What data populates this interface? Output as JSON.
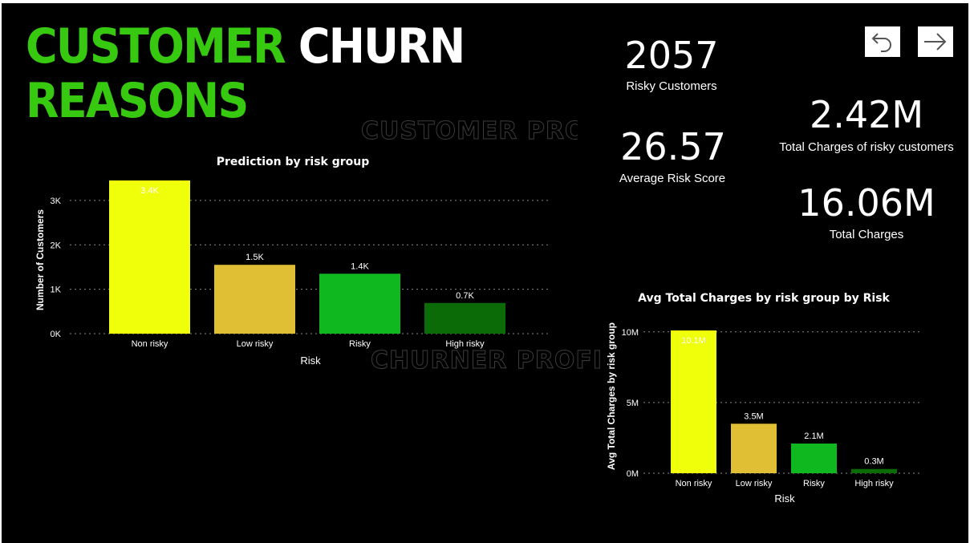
{
  "header": {
    "title_word1": "CUSTOMER",
    "title_word2": "CHURN",
    "title_line2": "REASONS"
  },
  "watermarks": {
    "customer_profile": "CUSTOMER PROFI",
    "churner_profile": "CHURNER PROFILE"
  },
  "nav": {
    "back_icon": "undo-arrow-icon",
    "forward_icon": "right-arrow-icon"
  },
  "kpis": {
    "risky_customers": {
      "value": "2057",
      "label": "Risky Customers"
    },
    "average_risk_score": {
      "value": "26.57",
      "label": "Average Risk Score"
    },
    "total_charges_risky": {
      "value": "2.42M",
      "label": "Total Charges of risky customers"
    },
    "total_charges": {
      "value": "16.06M",
      "label": "Total Charges"
    }
  },
  "colors": {
    "background": "#000000",
    "title_green": "#36c90f",
    "non_risky": "#f0ff0a",
    "low_risky": "#e0bf35",
    "risky": "#0fb81f",
    "high_risky": "#0b6b07"
  },
  "chart_data": [
    {
      "type": "bar",
      "title": "Prediction by risk group",
      "xlabel": "Risk",
      "ylabel": "Number of Customers",
      "categories": [
        "Non risky",
        "Low risky",
        "Risky",
        "High risky"
      ],
      "values": [
        3450,
        1550,
        1350,
        690
      ],
      "data_labels": [
        "3.4K",
        "1.5K",
        "1.4K",
        "0.7K"
      ],
      "bar_colors": [
        "#f0ff0a",
        "#e0bf35",
        "#0fb81f",
        "#0b6b07"
      ],
      "yticks": [
        0,
        1000,
        2000,
        3000
      ],
      "ytick_labels": [
        "0K",
        "1K",
        "2K",
        "3K"
      ],
      "ylim": [
        0,
        3450
      ],
      "grid": true
    },
    {
      "type": "bar",
      "title": "Avg Total Charges by risk group by Risk",
      "xlabel": "Risk",
      "ylabel": "Avg Total Charges by risk group",
      "categories": [
        "Non risky",
        "Low risky",
        "Risky",
        "High risky"
      ],
      "values": [
        10100000,
        3500000,
        2100000,
        300000
      ],
      "data_labels": [
        "10.1M",
        "3.5M",
        "2.1M",
        "0.3M"
      ],
      "bar_colors": [
        "#f0ff0a",
        "#e0bf35",
        "#0fb81f",
        "#0b6b07"
      ],
      "yticks": [
        0,
        5000000,
        10000000
      ],
      "ytick_labels": [
        "0M",
        "5M",
        "10M"
      ],
      "ylim": [
        0,
        10100000
      ],
      "grid": true
    }
  ]
}
